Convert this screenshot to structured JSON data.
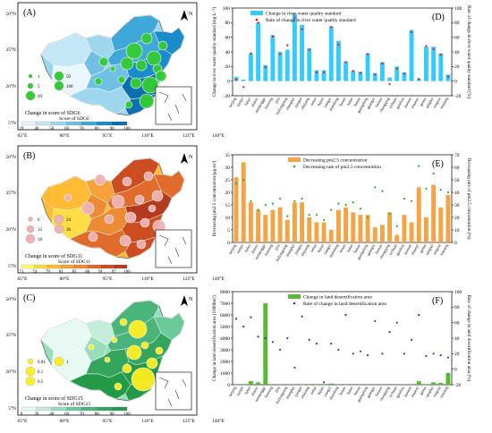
{
  "maps": [
    {
      "panel": "(A)",
      "legend_title": "Change in score of SDG6",
      "bubble_labels": [
        "1",
        "5",
        "10",
        "50",
        "100"
      ],
      "colorbar_title": "Score of SDG6",
      "colorbar_ticks": [
        "29",
        "40",
        "50",
        "60",
        "70",
        "80",
        "90",
        "100"
      ],
      "colors": [
        "#eaf6fb",
        "#c4e7f5",
        "#9ed6ee",
        "#6fc0e4",
        "#3fa8d8",
        "#1a8ccc",
        "#0c6fb0"
      ],
      "bubble_color": "#33cc33"
    },
    {
      "panel": "(B)",
      "legend_title": "Change in score of SDG11",
      "bubble_labels": [
        "6",
        "12",
        "18",
        "24",
        "30"
      ],
      "colorbar_title": "Score of SDG11",
      "colorbar_ticks": [
        "71",
        "74",
        "79",
        "81",
        "85",
        "88",
        "91",
        "97",
        "100"
      ],
      "colors": [
        "#ffff66",
        "#ffdd44",
        "#ffbb33",
        "#f7a13a",
        "#ee8a33",
        "#e06b2b",
        "#cc4d22",
        "#b33a1c"
      ],
      "bubble_color": "#f0b3b3"
    },
    {
      "panel": "(C)",
      "legend_title": "Change in score of SDG15",
      "bubble_labels": [
        "0.01",
        "0.1",
        "0.5",
        "1"
      ],
      "colorbar_title": "Score of SDG15",
      "colorbar_ticks": [
        "0",
        "20",
        "40",
        "60",
        "70",
        "80",
        "90",
        "100"
      ],
      "colors": [
        "#e8f8f2",
        "#c3ecd9",
        "#98ddbc",
        "#6cc99a",
        "#4ab57a",
        "#35a55e",
        "#229a47"
      ],
      "bubble_color": "#ffee22"
    }
  ],
  "lon_ticks": [
    "65°E",
    "80°E",
    "95°E",
    "110°E",
    "125°E",
    "140°E"
  ],
  "lat_ticks": [
    "50°N",
    "35°N",
    "20°N",
    "5°N"
  ],
  "north_label": "N",
  "chart_data": [
    {
      "panel": "(D)",
      "type": "bar",
      "categories": [
        "beijing",
        "tianjin",
        "hebei",
        "shanxi",
        "neimenggu",
        "liaoning",
        "jilin",
        "heilongjiang",
        "shanghai",
        "jiangsu",
        "zhejiang",
        "anhui",
        "fujian",
        "jiangxi",
        "shandong",
        "henan",
        "hubei",
        "hunan",
        "guangdong",
        "guangxi",
        "hainan",
        "chongqing",
        "sichuan",
        "guizhou",
        "yunnan",
        "shaanxi",
        "gansu",
        "qinghai",
        "ningxia",
        "xinjiang"
      ],
      "series": [
        {
          "name": "Change in river water quality standard",
          "values": [
            6,
            2,
            38,
            80,
            22,
            63,
            40,
            43,
            92,
            77,
            45,
            15,
            15,
            75,
            55,
            27,
            14,
            13,
            38,
            11,
            26,
            5,
            20,
            12,
            70,
            3,
            47,
            47,
            38,
            9
          ],
          "color": "#33ccff"
        },
        {
          "name": "Rate of change in river water quality standard",
          "values": [
            2,
            -8,
            38,
            80,
            19,
            61,
            37,
            49,
            87,
            71,
            43,
            12,
            12,
            74,
            50,
            26,
            14,
            11,
            37,
            9,
            24,
            -4,
            17,
            10,
            67,
            3,
            48,
            44,
            36,
            6
          ],
          "color": "#ee1111"
        }
      ],
      "ylabel": "Change in river water quality standard (mg·L⁻¹)",
      "y2label": "Rate of change in river water quality standard (%)",
      "ylim": [
        -20,
        100
      ],
      "yticks": [
        -20,
        0,
        20,
        40,
        60,
        80,
        100
      ],
      "y2lim": [
        -20,
        100
      ],
      "y2ticks": [
        -20,
        0,
        20,
        40,
        60,
        80,
        100
      ],
      "legend_position": "top-left"
    },
    {
      "panel": "(E)",
      "type": "bar",
      "categories": [
        "beijing",
        "tianjin",
        "hebei",
        "shanxi",
        "neimenggu",
        "liaoning",
        "jilin",
        "heilongjiang",
        "shanghai",
        "jiangsu",
        "zhejiang",
        "anhui",
        "fujian",
        "jiangxi",
        "shandong",
        "henan",
        "hubei",
        "hunan",
        "guangdong",
        "guangxi",
        "hainan",
        "chongqing",
        "sichuan",
        "guizhou",
        "yunnan",
        "shaanxi",
        "gansu",
        "qinghai",
        "ningxia",
        "xinjiang"
      ],
      "series": [
        {
          "name": "Decreasing pm2.5 concentration",
          "values": [
            26,
            32,
            16,
            13,
            11,
            13,
            14,
            9,
            16,
            16,
            10,
            8,
            8,
            5,
            13,
            14,
            12,
            11,
            11,
            6,
            7,
            12,
            3,
            11,
            8,
            22,
            10,
            23,
            14,
            19
          ],
          "color": "#f5a343"
        },
        {
          "name": "Decreasing rate of pm2.5 concentration",
          "values": [
            47,
            50,
            33,
            26,
            30,
            31,
            35,
            21,
            33,
            35,
            22,
            22,
            18,
            26,
            31,
            30,
            32,
            27,
            20,
            44,
            41,
            23,
            13,
            35,
            33,
            61,
            43,
            55,
            42,
            40
          ],
          "color": "#22aa33"
        }
      ],
      "ylabel": "Decreasing pm2.5 concentration (μg·m³)",
      "y2label": "Decreasing rate of pm2.5 concentration (%)",
      "ylim": [
        0,
        35
      ],
      "yticks": [
        0,
        5,
        10,
        15,
        20,
        25,
        30,
        35
      ],
      "y2lim": [
        0,
        70
      ],
      "y2ticks": [
        0,
        10,
        20,
        30,
        40,
        50,
        60,
        70
      ],
      "legend_position": "top-center"
    },
    {
      "panel": "(F)",
      "type": "bar",
      "categories": [
        "beijing",
        "tianjin",
        "hebei",
        "shanxi",
        "neimenggu",
        "liaoning",
        "jilin",
        "heilongjiang",
        "shanghai",
        "jiangsu",
        "zhejiang",
        "anhui",
        "fujian",
        "jiangxi",
        "shandong",
        "henan",
        "hubei",
        "hunan",
        "guangdong",
        "guangxi",
        "hainan",
        "chongqing",
        "sichuan",
        "guizhou",
        "yunnan",
        "shaanxi",
        "gansu",
        "qinghai",
        "ningxia",
        "xinjiang"
      ],
      "series": [
        {
          "name": "Change in land desertification area",
          "values": [
            0,
            0,
            300,
            200,
            7000,
            50,
            0,
            50,
            0,
            0,
            0,
            0,
            0,
            100,
            0,
            0,
            0,
            0,
            0,
            0,
            0,
            0,
            0,
            0,
            0,
            300,
            0,
            200,
            150,
            1000
          ],
          "color": "#55bb33"
        },
        {
          "name": "Rate of change in land desertification area",
          "values": [
            65,
            55,
            67,
            42,
            40,
            35,
            25,
            40,
            2,
            68,
            38,
            33,
            -17,
            33,
            25,
            70,
            20,
            23,
            18,
            62,
            20,
            48,
            60,
            20,
            38,
            70,
            17,
            20,
            18,
            15
          ],
          "color": "#3333cc"
        }
      ],
      "ylabel": "Change in land desertification area (1000hm²)",
      "y2label": "Rate of change in land desertification area (%)",
      "ylim": [
        0,
        8000
      ],
      "yticks": [
        0,
        1000,
        2000,
        3000,
        4000,
        5000,
        6000,
        7000,
        8000
      ],
      "y2lim": [
        -20,
        100
      ],
      "y2ticks": [
        -20,
        0,
        20,
        40,
        60,
        80,
        100
      ],
      "legend_position": "top-center"
    }
  ]
}
